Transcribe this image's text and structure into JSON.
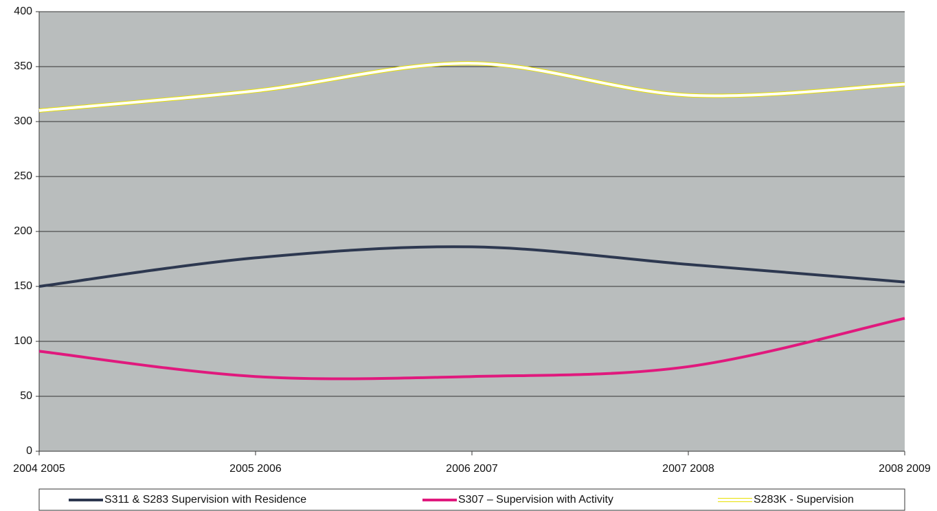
{
  "chart_data": {
    "type": "line",
    "categories": [
      "2004 2005",
      "2005 2006",
      "2006 2007",
      "2007 2008",
      "2008 2009"
    ],
    "series": [
      {
        "name": "S311 & S283 Supervision with Residence",
        "color": "#2d3850",
        "values": [
          150,
          176,
          186,
          170,
          154
        ]
      },
      {
        "name": "S307 – Supervision with Activity",
        "color": "#e0197d",
        "values": [
          91,
          68,
          68,
          77,
          121
        ]
      },
      {
        "name": "S283K - Supervision",
        "color": "#ffffff",
        "outline": "#e8e000",
        "values": [
          310,
          328,
          353,
          324,
          334
        ]
      }
    ],
    "ylim": [
      0,
      400
    ],
    "yticks": [
      0,
      50,
      100,
      150,
      200,
      250,
      300,
      350,
      400
    ],
    "grid": true,
    "smooth": true,
    "legend": "bottom"
  }
}
